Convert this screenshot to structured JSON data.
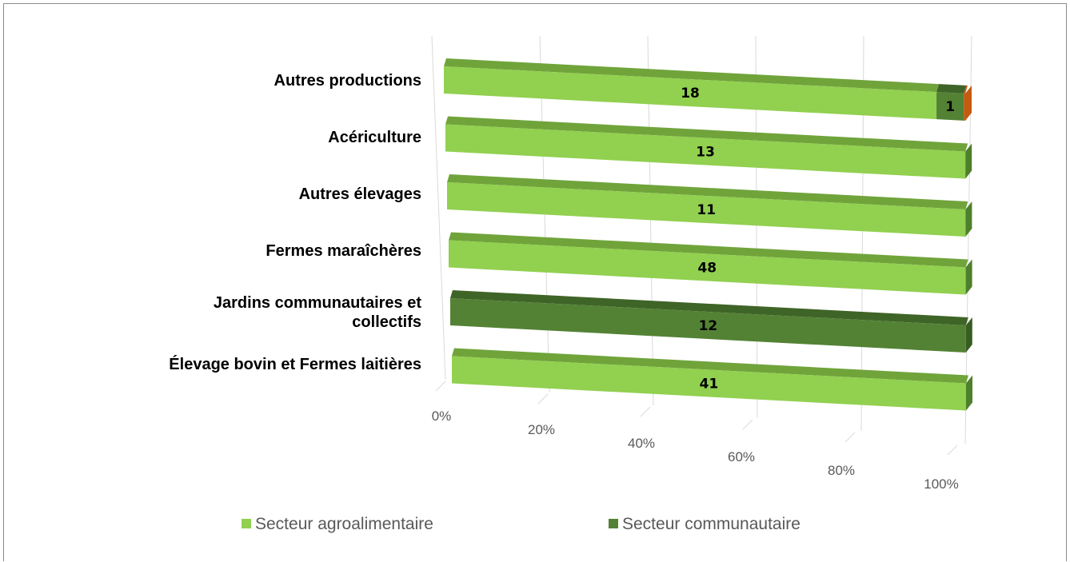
{
  "chart_data": {
    "type": "bar",
    "orientation": "horizontal",
    "stacking": "percent",
    "style": "3d",
    "categories": [
      "Autres productions",
      "Acériculture",
      "Autres élevages",
      "Fermes maraîchères",
      "Jardins communautaires et collectifs",
      "Élevage bovin et Fermes laitières"
    ],
    "category_lines": [
      [
        "Autres productions"
      ],
      [
        "Acériculture"
      ],
      [
        "Autres élevages"
      ],
      [
        "Fermes maraîchères"
      ],
      [
        "Jardins communautaires et",
        "collectifs"
      ],
      [
        "Élevage bovin et Fermes laitières"
      ]
    ],
    "series": [
      {
        "name": "Secteur agroalimentaire",
        "values": [
          18,
          13,
          11,
          48,
          0,
          41
        ],
        "labels": [
          "18",
          "13",
          "11",
          "48",
          "",
          "41"
        ]
      },
      {
        "name": "Secteur communautaire",
        "values": [
          1,
          0,
          0,
          0,
          12,
          0
        ],
        "labels": [
          "1",
          "",
          "",
          "",
          "12",
          ""
        ]
      },
      {
        "values": [
          0.05,
          0,
          0,
          0,
          0,
          0
        ],
        "labels": [
          "",
          "",
          "",
          "",
          "",
          ""
        ]
      }
    ],
    "xaxis": {
      "ticks": [
        "0%",
        "20%",
        "40%",
        "60%",
        "80%",
        "100%"
      ],
      "range": [
        0,
        100
      ]
    },
    "legend_position": "bottom",
    "grid": true,
    "colors": {
      "agro_front": "#92d050",
      "agro_top": "#70a43b",
      "agro_side": "#4e7f2b",
      "comm_front": "#548235",
      "comm_top": "#3f6427",
      "comm_side": "#385d21",
      "other_front": "#c55a11",
      "gridline": "#d9d9d9"
    }
  }
}
